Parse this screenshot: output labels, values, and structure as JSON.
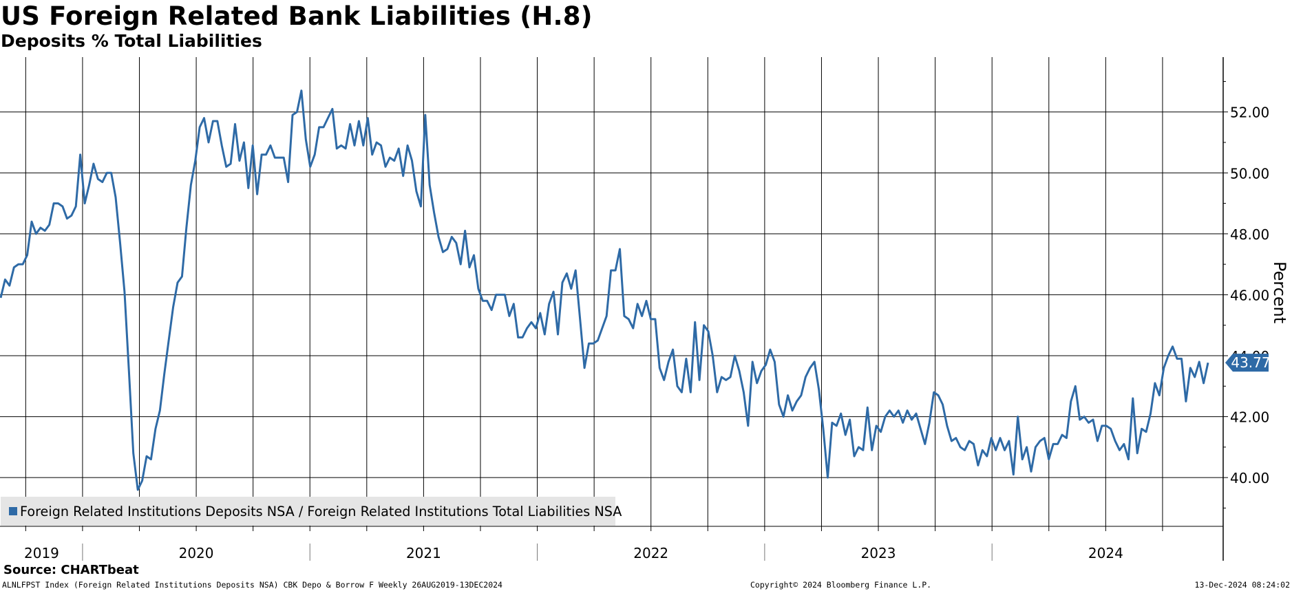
{
  "chart_data": {
    "type": "line",
    "title": "US Foreign Related Bank Liabilities (H.8)",
    "subtitle": "Deposits % Total Liabilities",
    "ylabel": "Percent",
    "ylim": [
      38.4,
      53.8
    ],
    "yticks": [
      40,
      42,
      44,
      46,
      48,
      50,
      52
    ],
    "ytick_labels": [
      "40.00",
      "42.00",
      "44.00",
      "46.00",
      "48.00",
      "50.00",
      "52.00"
    ],
    "x_start": 2019.64,
    "x_end": 2024.95,
    "year_labels": [
      {
        "label": "2019",
        "pos": 2019.82
      },
      {
        "label": "2020",
        "pos": 2020.5
      },
      {
        "label": "2021",
        "pos": 2021.5
      },
      {
        "label": "2022",
        "pos": 2022.5
      },
      {
        "label": "2023",
        "pos": 2023.5
      },
      {
        "label": "2024",
        "pos": 2024.5
      }
    ],
    "year_dividers": [
      2020.0,
      2021.0,
      2022.0,
      2023.0,
      2024.0
    ],
    "legend": "Foreign Related Institutions Deposits NSA / Foreign Related Institutions Total Liabilities NSA",
    "last_value": 43.77,
    "last_value_label": "43.77",
    "line_color": "#2e6aa6",
    "series": [
      {
        "name": "Foreign Related Institutions Deposits NSA / Foreign Related Institutions Total Liabilities NSA",
        "values": [
          45.9,
          46.5,
          46.3,
          46.9,
          47.0,
          47.0,
          47.3,
          48.4,
          48.0,
          48.2,
          48.1,
          48.3,
          49.0,
          49.0,
          48.9,
          48.5,
          48.6,
          48.9,
          50.6,
          49.0,
          49.6,
          50.3,
          49.8,
          49.7,
          50.0,
          50.0,
          49.2,
          47.7,
          46.1,
          43.5,
          40.8,
          39.6,
          39.9,
          40.7,
          40.6,
          41.6,
          42.2,
          43.4,
          44.5,
          45.6,
          46.4,
          46.6,
          48.2,
          49.6,
          50.4,
          51.5,
          51.8,
          51.0,
          51.7,
          51.7,
          50.9,
          50.2,
          50.3,
          51.6,
          50.4,
          51.0,
          49.5,
          50.9,
          49.3,
          50.6,
          50.6,
          50.9,
          50.5,
          50.5,
          50.5,
          49.7,
          51.9,
          52.0,
          52.7,
          51.1,
          50.2,
          50.6,
          51.5,
          51.5,
          51.8,
          52.1,
          50.8,
          50.9,
          50.8,
          51.6,
          50.9,
          51.7,
          50.9,
          51.8,
          50.6,
          51.0,
          50.9,
          50.2,
          50.5,
          50.4,
          50.8,
          49.9,
          50.9,
          50.4,
          49.4,
          48.9,
          51.9,
          49.6,
          48.7,
          47.9,
          47.4,
          47.5,
          47.9,
          47.7,
          47.0,
          48.1,
          46.9,
          47.3,
          46.2,
          45.8,
          45.8,
          45.5,
          46.0,
          46.0,
          46.0,
          45.3,
          45.7,
          44.6,
          44.6,
          44.9,
          45.1,
          44.9,
          45.4,
          44.7,
          45.7,
          46.1,
          44.7,
          46.4,
          46.7,
          46.2,
          46.8,
          45.2,
          43.6,
          44.4,
          44.4,
          44.5,
          44.9,
          45.3,
          46.8,
          46.8,
          47.5,
          45.3,
          45.2,
          44.9,
          45.7,
          45.3,
          45.8,
          45.2,
          45.2,
          43.6,
          43.2,
          43.8,
          44.2,
          43.0,
          42.8,
          43.9,
          42.8,
          45.1,
          43.2,
          45.0,
          44.8,
          44.0,
          42.8,
          43.3,
          43.2,
          43.3,
          44.0,
          43.5,
          42.8,
          41.7,
          43.8,
          43.1,
          43.5,
          43.7,
          44.2,
          43.8,
          42.4,
          42.0,
          42.7,
          42.2,
          42.5,
          42.7,
          43.3,
          43.6,
          43.8,
          42.9,
          41.6,
          40.0,
          41.8,
          41.7,
          42.1,
          41.4,
          41.9,
          40.7,
          41.0,
          40.9,
          42.3,
          40.9,
          41.7,
          41.5,
          42.0,
          42.2,
          42.0,
          42.2,
          41.8,
          42.2,
          41.9,
          42.1,
          41.6,
          41.1,
          41.8,
          42.8,
          42.7,
          42.4,
          41.7,
          41.2,
          41.3,
          41.0,
          40.9,
          41.2,
          41.1,
          40.4,
          40.9,
          40.7,
          41.3,
          40.9,
          41.3,
          40.9,
          41.2,
          40.1,
          42.0,
          40.6,
          41.0,
          40.2,
          41.0,
          41.2,
          41.3,
          40.6,
          41.1,
          41.1,
          41.4,
          41.3,
          42.5,
          43.0,
          41.9,
          42.0,
          41.8,
          41.9,
          41.2,
          41.7,
          41.7,
          41.6,
          41.2,
          40.9,
          41.1,
          40.6,
          42.6,
          40.8,
          41.6,
          41.5,
          42.1,
          43.1,
          42.7,
          43.6,
          44.0,
          44.3,
          43.9,
          43.9,
          42.5,
          43.6,
          43.3,
          43.8,
          43.1,
          43.77
        ]
      }
    ]
  },
  "footer": {
    "source": "Source: CHARTbeat",
    "ticker_line": "ALNLFPST Index (Foreign Related Institutions Deposits NSA) CBK Depo & Borrow F  Weekly 26AUG2019-13DEC2024",
    "copyright": "Copyright© 2024 Bloomberg Finance L.P.",
    "timestamp": "13-Dec-2024 08:24:02"
  }
}
